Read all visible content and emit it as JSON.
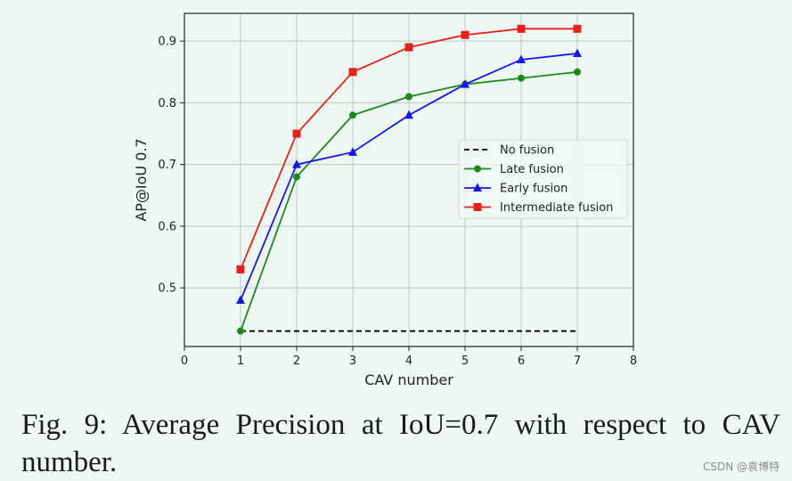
{
  "chart_data": {
    "type": "line",
    "xlabel": "CAV number",
    "ylabel": "AP@IoU 0.7",
    "xlim": [
      0,
      8
    ],
    "ylim": [
      0.405,
      0.945
    ],
    "x_ticks": [
      "0",
      "1",
      "2",
      "3",
      "4",
      "5",
      "6",
      "7",
      "8"
    ],
    "y_ticks": [
      "0.5",
      "0.6",
      "0.7",
      "0.8",
      "0.9"
    ],
    "grid": true,
    "legend_position": "center-right",
    "series": [
      {
        "name": "No fusion",
        "color": "#000000",
        "style": "dashed",
        "marker": "none",
        "x": [
          1,
          7
        ],
        "values": [
          0.43,
          0.43
        ]
      },
      {
        "name": "Late fusion",
        "color": "#1a8a1a",
        "style": "solid",
        "marker": "circle",
        "x": [
          1,
          2,
          3,
          4,
          5,
          6,
          7
        ],
        "values": [
          0.43,
          0.68,
          0.78,
          0.81,
          0.83,
          0.84,
          0.85
        ]
      },
      {
        "name": "Early fusion",
        "color": "#1515ee",
        "style": "solid",
        "marker": "triangle",
        "x": [
          1,
          2,
          3,
          4,
          5,
          6,
          7
        ],
        "values": [
          0.48,
          0.7,
          0.72,
          0.78,
          0.83,
          0.87,
          0.88
        ]
      },
      {
        "name": "Intermediate fusion",
        "color": "#e8201a",
        "style": "solid",
        "marker": "square",
        "x": [
          1,
          2,
          3,
          4,
          5,
          6,
          7
        ],
        "values": [
          0.53,
          0.75,
          0.85,
          0.89,
          0.91,
          0.92,
          0.92
        ]
      }
    ]
  },
  "caption": "Fig. 9: Average Precision at IoU=0.7 with respect to CAV number.",
  "watermark": "CSDN @袁博特"
}
